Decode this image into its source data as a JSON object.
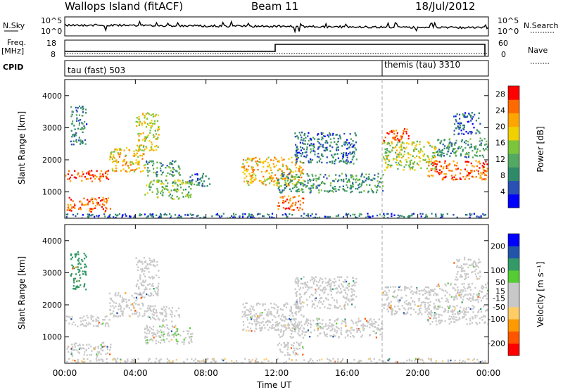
{
  "header": {
    "title": "Wallops Island (fitACF)",
    "beam": "Beam 11",
    "date": "18/Jul/2012"
  },
  "labels": {
    "nsky": "N.Sky",
    "nsearch": "N.Search",
    "freq": "Freq.",
    "mhz": "[MHz]",
    "nave": "Nave",
    "cpid": "CPID",
    "power_axis": "Power [dB]",
    "velocity_axis": "Velocity [m s⁻¹]",
    "slant_range": "Slant Range [km]",
    "time_axis": "Time UT"
  },
  "noise_axis": {
    "top": "10^5",
    "bottom": "10^0"
  },
  "freq_axis": {
    "top": "18",
    "bottom": "8",
    "right_top": "60",
    "right_bottom": "0"
  },
  "cpid_blocks": [
    {
      "label": "tau (fast) 503",
      "start_hour": 0,
      "end_hour": 18
    },
    {
      "label": "themis (tau) 3310",
      "start_hour": 18,
      "end_hour": 24
    }
  ],
  "colors": {
    "power_scale": [
      "#0000ff",
      "#2a4fb5",
      "#2f8a6a",
      "#53a862",
      "#7cc43a",
      "#f0d000",
      "#ffa500",
      "#ff6a00",
      "#ff0000"
    ],
    "velocity_scale": [
      "#ff0000",
      "#ff5500",
      "#ff9900",
      "#ffcc66",
      "#c8c8c8",
      "#c8c8c8",
      "#55cc33",
      "#339966",
      "#2255aa",
      "#0000ff"
    ]
  },
  "chart_data": [
    {
      "type": "heatmap",
      "name": "power",
      "ylabel": "Slant Range [km]",
      "xlabel": "",
      "x_ticks": [
        "00:00",
        "04:00",
        "08:00",
        "12:00",
        "16:00",
        "20:00",
        "00:00"
      ],
      "y_ticks": [
        1000,
        2000,
        3000,
        4000
      ],
      "xlim_hours": [
        0,
        24
      ],
      "ylim_km": [
        180,
        4500
      ],
      "colorbar_label": "Power [dB]",
      "colorbar_ticks": [
        4,
        8,
        12,
        16,
        20,
        24,
        28
      ],
      "colorbar_range": [
        0,
        30
      ],
      "echo_regions": [
        {
          "t0": 0.0,
          "t1": 2.5,
          "r0": 1350,
          "r1": 1700,
          "v": 26
        },
        {
          "t0": 2.5,
          "t1": 4.5,
          "r0": 1650,
          "r1": 2400,
          "v": 20
        },
        {
          "t0": 4.0,
          "t1": 5.3,
          "r0": 2300,
          "r1": 3500,
          "v": 18
        },
        {
          "t0": 0.1,
          "t1": 2.6,
          "r0": 400,
          "r1": 850,
          "v": 25
        },
        {
          "t0": 0.3,
          "t1": 1.2,
          "r0": 2500,
          "r1": 3700,
          "v": 8
        },
        {
          "t0": 4.5,
          "t1": 6.5,
          "r0": 1500,
          "r1": 2000,
          "v": 10
        },
        {
          "t0": 4.5,
          "t1": 7.2,
          "r0": 800,
          "r1": 1400,
          "v": 14
        },
        {
          "t0": 7.0,
          "t1": 8.2,
          "r0": 1200,
          "r1": 1600,
          "v": 8
        },
        {
          "t0": 10.0,
          "t1": 13.5,
          "r0": 1200,
          "r1": 2100,
          "v": 20
        },
        {
          "t0": 12.0,
          "t1": 13.5,
          "r0": 450,
          "r1": 900,
          "v": 24
        },
        {
          "t0": 12.0,
          "t1": 18.0,
          "r0": 1000,
          "r1": 1600,
          "v": 10
        },
        {
          "t0": 13.0,
          "t1": 16.5,
          "r0": 1900,
          "r1": 2900,
          "v": 7
        },
        {
          "t0": 18.0,
          "t1": 21.0,
          "r0": 1700,
          "r1": 2600,
          "v": 16
        },
        {
          "t0": 20.5,
          "t1": 24.0,
          "r0": 1400,
          "r1": 2000,
          "v": 25
        },
        {
          "t0": 21.0,
          "t1": 24.0,
          "r0": 2100,
          "r1": 2700,
          "v": 10
        },
        {
          "t0": 22.0,
          "t1": 23.5,
          "r0": 2800,
          "r1": 3500,
          "v": 6
        },
        {
          "t0": 18.0,
          "t1": 19.5,
          "r0": 2600,
          "r1": 3000,
          "v": 26
        },
        {
          "t0": 0.0,
          "t1": 24.0,
          "r0": 180,
          "r1": 350,
          "v": 6
        }
      ]
    },
    {
      "type": "heatmap",
      "name": "velocity",
      "ylabel": "Slant Range [km]",
      "xlabel": "Time UT",
      "x_ticks": [
        "00:00",
        "04:00",
        "08:00",
        "12:00",
        "16:00",
        "20:00",
        "00:00"
      ],
      "y_ticks": [
        1000,
        2000,
        3000,
        4000
      ],
      "xlim_hours": [
        0,
        24
      ],
      "ylim_km": [
        180,
        4500
      ],
      "colorbar_label": "Velocity [m s⁻¹]",
      "colorbar_ticks": [
        -200,
        -100,
        -50,
        -15,
        15,
        50,
        100,
        200
      ],
      "colorbar_range": [
        -250,
        250
      ],
      "echo_regions": [
        {
          "t0": 0.0,
          "t1": 2.5,
          "r0": 1350,
          "r1": 1700,
          "v": 0
        },
        {
          "t0": 2.5,
          "t1": 4.5,
          "r0": 1650,
          "r1": 2400,
          "v": 5
        },
        {
          "t0": 4.0,
          "t1": 5.3,
          "r0": 2300,
          "r1": 3500,
          "v": 0
        },
        {
          "t0": 0.1,
          "t1": 2.6,
          "r0": 400,
          "r1": 850,
          "v": 0
        },
        {
          "t0": 0.3,
          "t1": 1.2,
          "r0": 2500,
          "r1": 3700,
          "v": 120
        },
        {
          "t0": 4.5,
          "t1": 6.5,
          "r0": 1500,
          "r1": 2000,
          "v": 30
        },
        {
          "t0": 4.5,
          "t1": 7.2,
          "r0": 800,
          "r1": 1400,
          "v": 40
        },
        {
          "t0": 10.0,
          "t1": 13.5,
          "r0": 1200,
          "r1": 2100,
          "v": 0
        },
        {
          "t0": 12.0,
          "t1": 13.5,
          "r0": 450,
          "r1": 900,
          "v": 0
        },
        {
          "t0": 12.0,
          "t1": 18.0,
          "r0": 1000,
          "r1": 1600,
          "v": 0
        },
        {
          "t0": 13.0,
          "t1": 16.5,
          "r0": 1900,
          "r1": 2900,
          "v": 0
        },
        {
          "t0": 18.0,
          "t1": 21.0,
          "r0": 1700,
          "r1": 2600,
          "v": 0
        },
        {
          "t0": 20.5,
          "t1": 24.0,
          "r0": 1400,
          "r1": 2000,
          "v": 0
        },
        {
          "t0": 21.0,
          "t1": 24.0,
          "r0": 2100,
          "r1": 2700,
          "v": 5
        },
        {
          "t0": 22.0,
          "t1": 23.5,
          "r0": 2800,
          "r1": 3500,
          "v": 0
        },
        {
          "t0": 0.0,
          "t1": 24.0,
          "r0": 180,
          "r1": 350,
          "v": -40
        }
      ]
    }
  ]
}
